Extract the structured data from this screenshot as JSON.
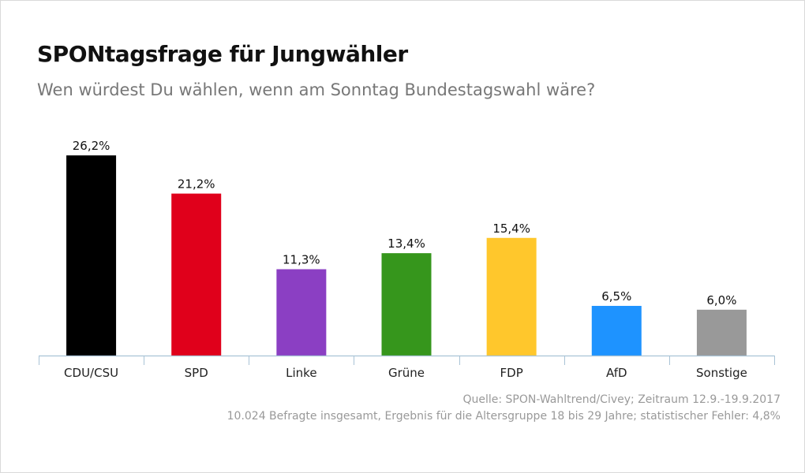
{
  "chart_data": {
    "type": "bar",
    "title": "SPONtagsfrage für Jungwähler",
    "subtitle": "Wen würdest Du wählen, wenn am Sonntag Bundestagswahl wäre?",
    "categories": [
      "CDU/CSU",
      "SPD",
      "Linke",
      "Grüne",
      "FDP",
      "AfD",
      "Sonstige"
    ],
    "values": [
      26.2,
      21.2,
      11.3,
      13.4,
      15.4,
      6.5,
      6.0
    ],
    "value_labels": [
      "26,2%",
      "21,2%",
      "11,3%",
      "13,4%",
      "15,4%",
      "6,5%",
      "6,0%"
    ],
    "colors": [
      "#000000",
      "#e0001b",
      "#8b3fc3",
      "#36961c",
      "#ffc72c",
      "#1e93ff",
      "#999999"
    ],
    "xlabel": "",
    "ylabel": "",
    "ylim": [
      0,
      28
    ],
    "grid": false,
    "legend": "none"
  },
  "source": {
    "line1": "Quelle: SPON-Wahltrend/Civey; Zeitraum 12.9.-19.9.2017",
    "line2": "10.024 Befragte insgesamt, Ergebnis für die Altersgruppe 18 bis 29 Jahre; statistischer Fehler: 4,8%"
  }
}
